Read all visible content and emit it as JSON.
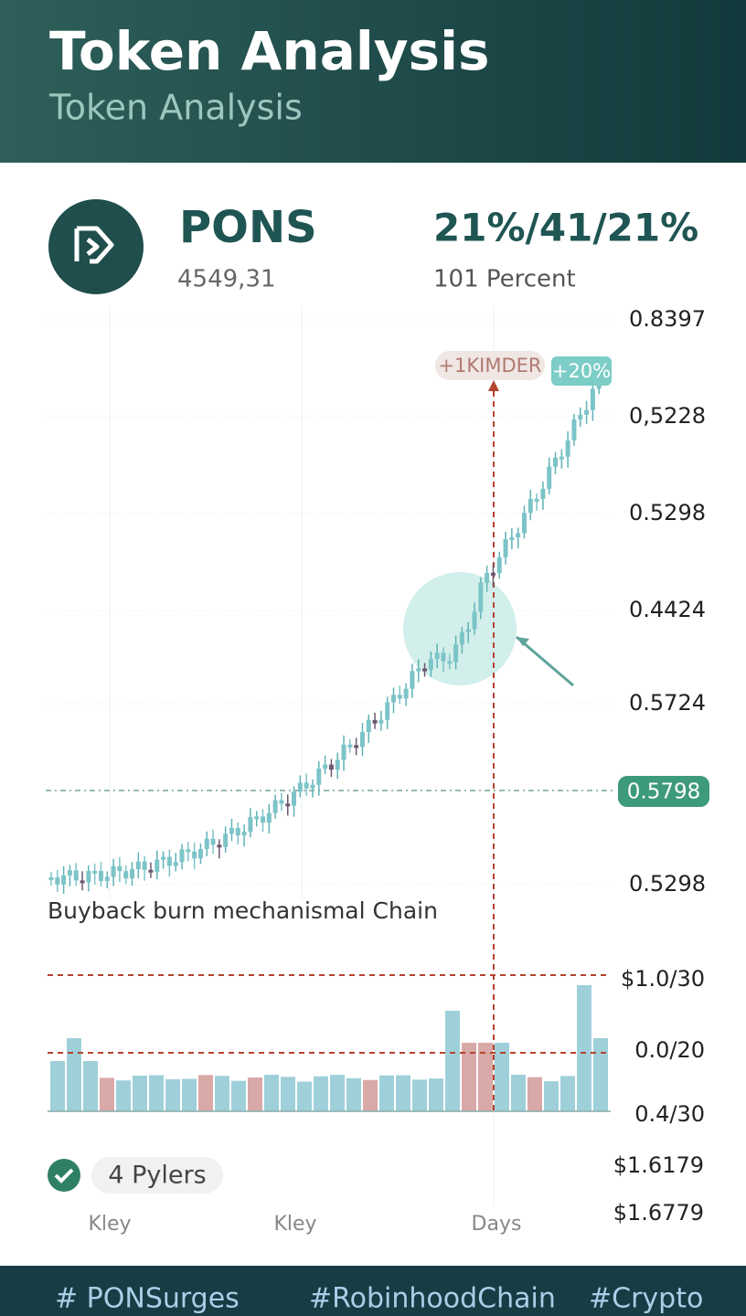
{
  "header": {
    "title": "Token Analysis",
    "subtitle": "Token Analysis"
  },
  "token": {
    "name": "PONS",
    "amount": "4549,31",
    "stat": "21%/41/21%",
    "stat_label": "101 Percent"
  },
  "price_chart": {
    "axis_labels": [
      "0.8397",
      "0,5228",
      "0.5298",
      "0.4424",
      "0.5724",
      "0.5298"
    ],
    "marker_label": "+1KIMDER",
    "change_badge": "+20%",
    "level_badge": "0.5798",
    "caption": "Buyback burn mechanismal Chain"
  },
  "volume_chart": {
    "axis_labels": [
      "$1.0/30",
      "0.0/20",
      "0.4/30"
    ]
  },
  "status": {
    "label": "4 Pylers"
  },
  "side_labels": [
    "$1.6179",
    "$1.6779"
  ],
  "x_labels": [
    "Kley",
    "Kley",
    "Days"
  ],
  "footer": {
    "hashtags": [
      "# PONSurges",
      "#RobinhoodChain",
      "#Crypto"
    ]
  }
}
